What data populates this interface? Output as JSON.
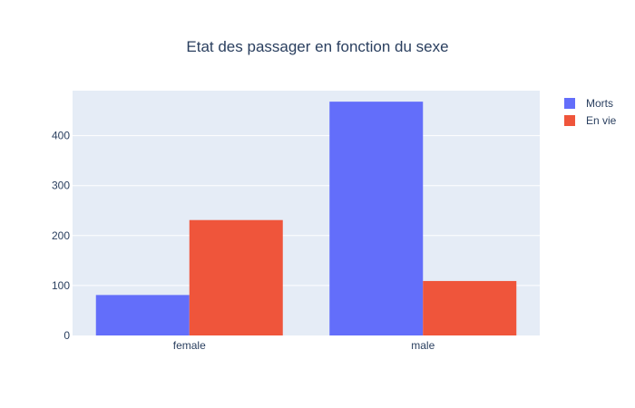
{
  "chart_data": {
    "type": "bar",
    "title": "Etat des passager en fonction du sexe",
    "xlabel": "",
    "ylabel": "",
    "categories": [
      "female",
      "male"
    ],
    "series": [
      {
        "name": "Morts",
        "values": [
          81,
          468
        ],
        "color": "#636efa"
      },
      {
        "name": "En vie",
        "values": [
          231,
          109
        ],
        "color": "#ef553b"
      }
    ],
    "ylim": [
      0,
      490
    ],
    "yticks": [
      0,
      100,
      200,
      300,
      400
    ],
    "grid": true,
    "legend_position": "top-right",
    "plot_background": "#e5ecf6"
  }
}
